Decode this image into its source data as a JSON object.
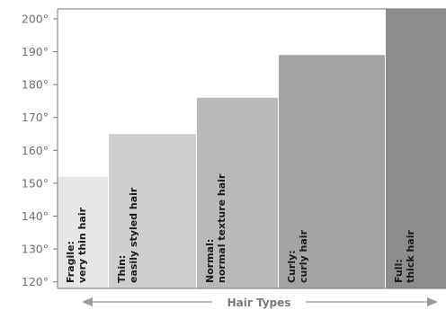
{
  "chart_data": {
    "type": "bar",
    "title": "",
    "xlabel": "Hair Types",
    "ylabel": "",
    "ylim": [
      118,
      203
    ],
    "yticks": [
      "120°",
      "130°",
      "140°",
      "150°",
      "160°",
      "170°",
      "180°",
      "190°",
      "200°"
    ],
    "categories": [
      {
        "name": "Fragile:",
        "desc": "very thin hair"
      },
      {
        "name": "Thin:",
        "desc": "easily styled hair"
      },
      {
        "name": "Normal:",
        "desc": "normal texture hair"
      },
      {
        "name": "Curly:",
        "desc": "curly hair"
      },
      {
        "name": "Full:",
        "desc": "thick hair"
      }
    ],
    "values": [
      152,
      165,
      176,
      189,
      203
    ],
    "colors": [
      "#e6e6e8",
      "#cfcfd1",
      "#b9b9bc",
      "#a4a4a7",
      "#8d8d90"
    ],
    "grid": false
  }
}
